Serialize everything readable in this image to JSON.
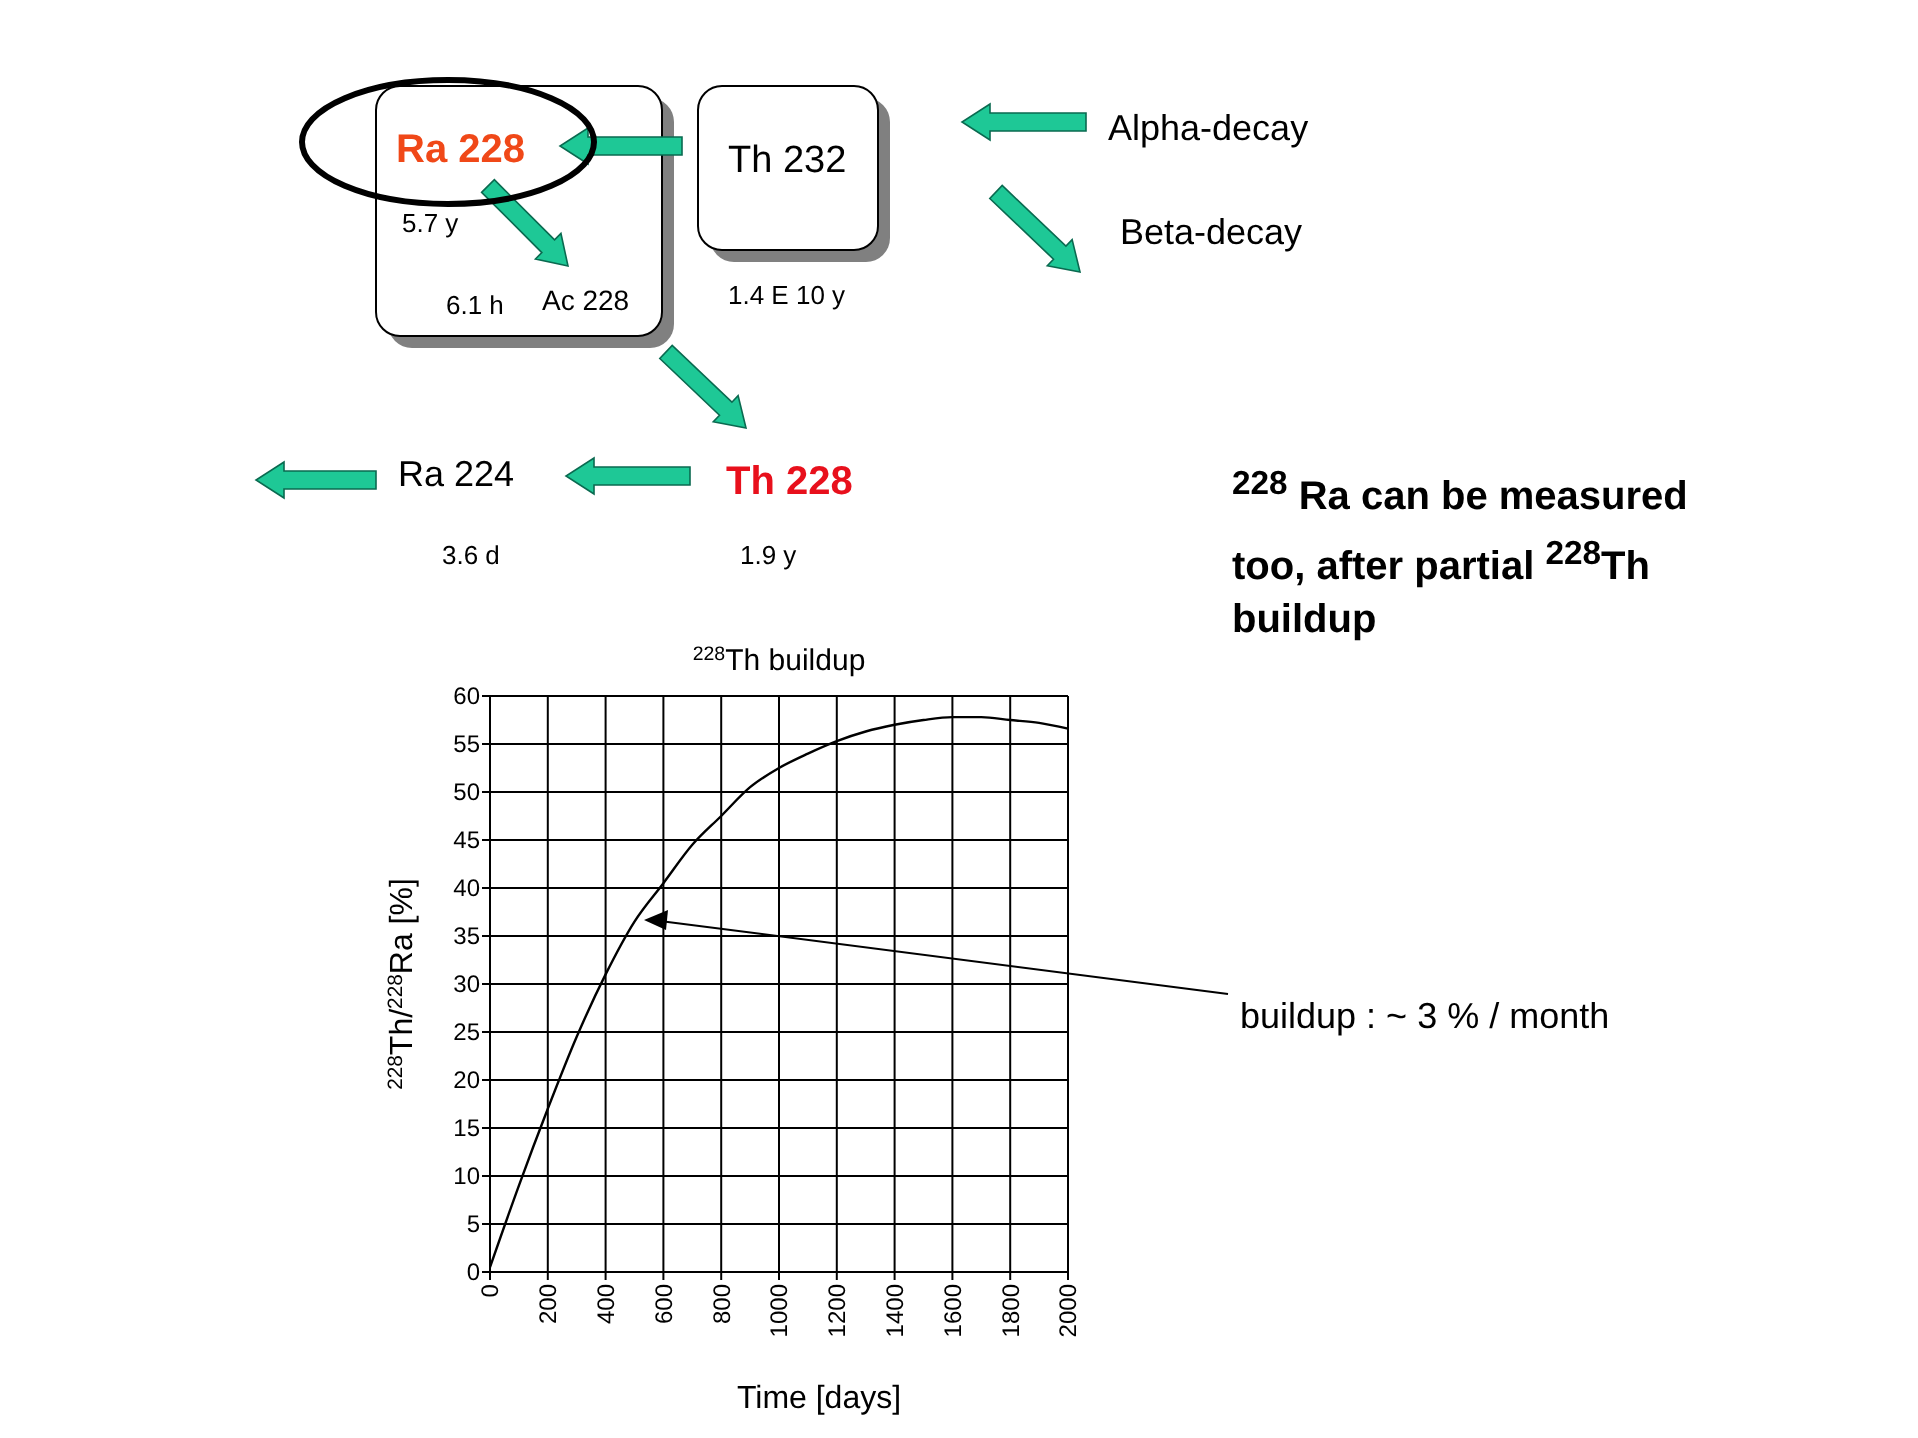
{
  "chart_data": {
    "type": "line",
    "title": "$^{228}$Th buildup",
    "xlabel": "Time [days]",
    "ylabel": "$^{228}$Th/$^{228}$Ra [%]",
    "x": [
      0,
      100,
      200,
      300,
      400,
      500,
      600,
      700,
      800,
      900,
      1000,
      1100,
      1200,
      1300,
      1400,
      1500,
      1600,
      1700,
      1800,
      1900,
      2000
    ],
    "series": [
      {
        "color": "#000000",
        "values": [
          0.5,
          9,
          17,
          24.5,
          31,
          36.5,
          40.5,
          44.5,
          47.5,
          50.5,
          52.5,
          54,
          55.3,
          56.3,
          57,
          57.5,
          57.8,
          57.8,
          57.5,
          57.2,
          56.6
        ]
      }
    ],
    "xlim": [
      0,
      2000
    ],
    "ylim": [
      0,
      60
    ],
    "xticks": [
      0,
      200,
      400,
      600,
      800,
      1000,
      1200,
      1400,
      1600,
      1800,
      2000
    ],
    "yticks": [
      0,
      5,
      10,
      15,
      20,
      25,
      30,
      35,
      40,
      45,
      50,
      55,
      60
    ],
    "grid": true,
    "annotations": [
      "Ra 228",
      "5.7 y",
      "6.1 h",
      "Ac 228",
      "Th 232",
      "1.4 E 10 y",
      "Alpha-decay",
      "Beta-decay",
      "Ra 224",
      "3.6 d",
      "Th 228",
      "1.9 y",
      "$^{228}$ Ra can be measured too, after partial $^{228}$Th buildup",
      "buildup : ~ 3 % / month"
    ]
  }
}
